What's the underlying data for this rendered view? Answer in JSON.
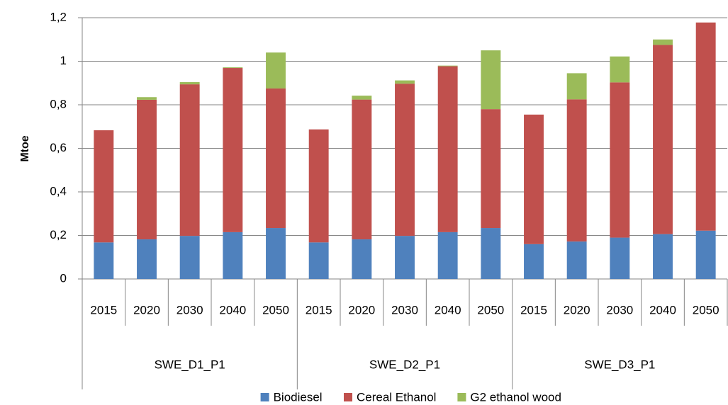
{
  "chart_data": {
    "type": "stacked_bar",
    "y_label": "Mtoe",
    "categories": [
      "2015",
      "2020",
      "2030",
      "2040",
      "2050",
      "2015",
      "2020",
      "2030",
      "2040",
      "2050",
      "2015",
      "2020",
      "2030",
      "2040",
      "2050"
    ],
    "category_groups": [
      "SWE_D1_P1",
      "SWE_D2_P1",
      "SWE_D3_P1"
    ],
    "series": [
      {
        "name": "Biodiesel",
        "color": "#4f81bd",
        "values": [
          0.168,
          0.182,
          0.198,
          0.215,
          0.234,
          0.168,
          0.182,
          0.198,
          0.215,
          0.234,
          0.16,
          0.172,
          0.19,
          0.206,
          0.222
        ]
      },
      {
        "name": "Cereal Ethanol",
        "color": "#c0504d",
        "values": [
          0.515,
          0.641,
          0.696,
          0.754,
          0.641,
          0.519,
          0.642,
          0.699,
          0.762,
          0.546,
          0.595,
          0.653,
          0.713,
          0.869,
          0.956
        ]
      },
      {
        "name": "G2 ethanol wood",
        "color": "#9bbb59",
        "values": [
          0,
          0.012,
          0.01,
          0.003,
          0.165,
          0,
          0.018,
          0.015,
          0.003,
          0.27,
          0,
          0.12,
          0.119,
          0.025,
          0
        ]
      }
    ],
    "ylim": [
      0,
      1.2
    ],
    "yticks": [
      0,
      {
        "value": 0.2,
        "label": "0,2"
      },
      {
        "value": 0.4,
        "label": "0,4"
      },
      {
        "value": 0.6,
        "label": "0,6"
      },
      {
        "value": 0.8,
        "label": "0,8"
      },
      1,
      {
        "value": 1.2,
        "label": "1,2"
      }
    ],
    "grid": true,
    "legend": "bottom"
  }
}
